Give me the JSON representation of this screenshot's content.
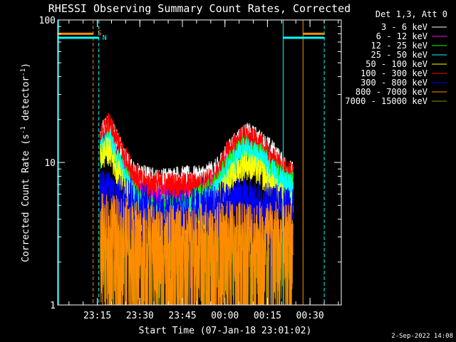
{
  "chart_data": {
    "type": "line",
    "title": "RHESSI Observing Summary Count Rates, Corrected",
    "xlabel": "Start Time (07-Jan-18 23:01:02)",
    "ylabel": "Corrected Count Rate (s",
    "ylabel_sup1": "-1",
    "ylabel_mid": " detector",
    "ylabel_sup2": "-1",
    "ylabel_end": ")",
    "y_scale": "log",
    "ylim": [
      1,
      100
    ],
    "y_ticks": [
      {
        "value": 1,
        "label": "1"
      },
      {
        "value": 10,
        "label": "10"
      },
      {
        "value": 100,
        "label": "100"
      }
    ],
    "x_range_minutes": [
      0,
      100
    ],
    "x_ticks": [
      {
        "minutes": 13.97,
        "label": "23:15"
      },
      {
        "minutes": 28.97,
        "label": "23:30"
      },
      {
        "minutes": 43.97,
        "label": "23:45"
      },
      {
        "minutes": 58.97,
        "label": "00:00"
      },
      {
        "minutes": 73.97,
        "label": "00:15"
      },
      {
        "minutes": 88.97,
        "label": "00:30"
      }
    ],
    "legend_header": "Det 1,3, Att 0",
    "legend_position": "top-right",
    "series": [
      {
        "name": "3 - 6 keV",
        "color": "#ffffff"
      },
      {
        "name": "6 - 12 keV",
        "color": "#ff00ff"
      },
      {
        "name": "12 - 25 keV",
        "color": "#00ff00"
      },
      {
        "name": "25 - 50 keV",
        "color": "#00ffff"
      },
      {
        "name": "50 - 100 keV",
        "color": "#ffff00"
      },
      {
        "name": "100 - 300 keV",
        "color": "#ff0000"
      },
      {
        "name": "300 - 800 keV",
        "color": "#0000ff"
      },
      {
        "name": "800 - 7000 keV",
        "color": "#ff8c00"
      },
      {
        "name": "7000 - 15000 keV",
        "color": "#8b8b00"
      }
    ],
    "flags": [
      {
        "label": "S",
        "color": "#ff8c00",
        "level": 80,
        "intervals_minutes": [
          [
            0,
            12.5
          ],
          [
            86.5,
            94
          ]
        ]
      },
      {
        "label": "N",
        "color": "#00ffff",
        "level": 75,
        "intervals_minutes": [
          [
            0,
            14.5
          ],
          [
            79.5,
            94
          ]
        ]
      }
    ],
    "vertical_markers": [
      {
        "minutes": 12.5,
        "color": "#ff8c00",
        "style": "dashed"
      },
      {
        "minutes": 14.5,
        "color": "#00ffff",
        "style": "dashed"
      },
      {
        "minutes": 79.5,
        "color": "#00ffff",
        "style": "solid"
      },
      {
        "minutes": 86.5,
        "color": "#ff8c00",
        "style": "solid"
      },
      {
        "minutes": 94.0,
        "color": "#00ffff",
        "style": "dashed"
      },
      {
        "minutes": 0.3,
        "color": "#00ffff",
        "style": "solid"
      }
    ],
    "data_window_minutes": [
      15,
      83
    ],
    "profiles": {
      "3 - 6 keV": [
        [
          15,
          14
        ],
        [
          16,
          17
        ],
        [
          18,
          18
        ],
        [
          20,
          16
        ],
        [
          22,
          13
        ],
        [
          24,
          10.5
        ],
        [
          27,
          8.5
        ],
        [
          30,
          8.2
        ],
        [
          35,
          7.6
        ],
        [
          42,
          8.0
        ],
        [
          50,
          8.0
        ],
        [
          56,
          9.0
        ],
        [
          58,
          10.5
        ],
        [
          60,
          12
        ],
        [
          64,
          15
        ],
        [
          67,
          16
        ],
        [
          70,
          15
        ],
        [
          73,
          13.5
        ],
        [
          76,
          12
        ],
        [
          79,
          10
        ],
        [
          81,
          9
        ],
        [
          83,
          8.5
        ]
      ],
      "6 - 12 keV": [
        [
          15,
          12
        ],
        [
          18,
          14.5
        ],
        [
          22,
          10
        ],
        [
          27,
          7
        ],
        [
          35,
          6
        ],
        [
          45,
          6
        ],
        [
          55,
          7
        ],
        [
          60,
          10
        ],
        [
          66,
          13.5
        ],
        [
          72,
          11.5
        ],
        [
          79,
          8
        ],
        [
          83,
          7.5
        ]
      ],
      "12 - 25 keV": [
        [
          15,
          11.5
        ],
        [
          18,
          14
        ],
        [
          22,
          9.5
        ],
        [
          27,
          6
        ],
        [
          33,
          4.8
        ],
        [
          45,
          5
        ],
        [
          55,
          6.5
        ],
        [
          60,
          9.5
        ],
        [
          66,
          13
        ],
        [
          72,
          11
        ],
        [
          78,
          8
        ],
        [
          83,
          7
        ]
      ],
      "25 - 50 keV": [
        [
          15,
          12
        ],
        [
          18,
          14.5
        ],
        [
          22,
          9.5
        ],
        [
          27,
          5.5
        ],
        [
          33,
          4.2
        ],
        [
          45,
          4.3
        ],
        [
          55,
          5.8
        ],
        [
          60,
          9
        ],
        [
          66,
          12.5
        ],
        [
          72,
          10.5
        ],
        [
          78,
          7.5
        ],
        [
          83,
          6.5
        ]
      ],
      "50 - 100 keV": [
        [
          15,
          11
        ],
        [
          18,
          12.5
        ],
        [
          22,
          8
        ],
        [
          27,
          4.5
        ],
        [
          33,
          3.6
        ],
        [
          45,
          3.7
        ],
        [
          55,
          4.8
        ],
        [
          60,
          7.5
        ],
        [
          66,
          10
        ],
        [
          72,
          8.5
        ],
        [
          78,
          6
        ],
        [
          83,
          5
        ]
      ],
      "100 - 300 keV": [
        [
          15,
          15
        ],
        [
          18,
          18.5
        ],
        [
          22,
          13
        ],
        [
          26,
          9
        ],
        [
          30,
          7.2
        ],
        [
          40,
          7.0
        ],
        [
          50,
          7.0
        ],
        [
          56,
          8
        ],
        [
          60,
          12
        ],
        [
          66,
          15.5
        ],
        [
          72,
          13
        ],
        [
          77,
          10
        ],
        [
          83,
          8
        ]
      ],
      "300 - 800 keV": [
        [
          15,
          6.2
        ],
        [
          25,
          5.5
        ],
        [
          35,
          4.5
        ],
        [
          45,
          4.5
        ],
        [
          55,
          5
        ],
        [
          65,
          5.5
        ],
        [
          75,
          5
        ],
        [
          83,
          4.5
        ]
      ],
      "800 - 7000 keV": [
        [
          15,
          3.3
        ],
        [
          25,
          3.0
        ],
        [
          35,
          2.7
        ],
        [
          45,
          2.7
        ],
        [
          55,
          2.8
        ],
        [
          65,
          3.0
        ],
        [
          75,
          2.9
        ],
        [
          83,
          2.8
        ]
      ],
      "7000 - 15000 keV": [
        [
          15,
          2.4
        ],
        [
          30,
          2.2
        ],
        [
          50,
          2.2
        ],
        [
          70,
          2.3
        ],
        [
          83,
          2.2
        ]
      ]
    },
    "noise_fraction": {
      "3 - 6 keV": 0.12,
      "6 - 12 keV": 0.12,
      "12 - 25 keV": 0.15,
      "25 - 50 keV": 0.15,
      "50 - 100 keV": 0.15,
      "100 - 300 keV": 0.14,
      "300 - 800 keV": 0.28,
      "800 - 7000 keV": 0.55,
      "7000 - 15000 keV": 0.45
    },
    "draw_order": [
      "7000 - 15000 keV",
      "3 - 6 keV",
      "6 - 12 keV",
      "100 - 300 keV",
      "12 - 25 keV",
      "25 - 50 keV",
      "50 - 100 keV",
      "300 - 800 keV",
      "800 - 7000 keV"
    ]
  },
  "footer": {
    "date_stamp": "2-Sep-2022 14:08"
  }
}
